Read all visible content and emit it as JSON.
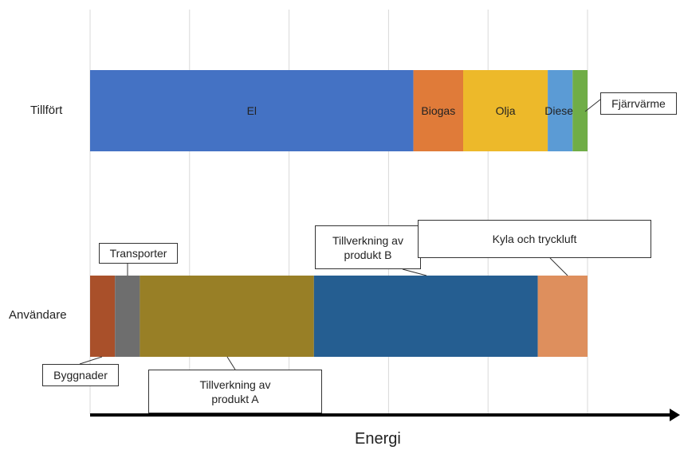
{
  "chart_data": {
    "type": "bar",
    "orientation": "horizontal",
    "stacked": true,
    "categories": [
      "Tillfört",
      "Användare"
    ],
    "xlabel": "Energi",
    "grid": true,
    "tillfort": {
      "category": "Tillfört",
      "segments": [
        {
          "name": "El",
          "value": 65,
          "color": "#4472C4",
          "label": "El"
        },
        {
          "name": "Biogas",
          "value": 10,
          "color": "#E07B39",
          "label": "Biogas"
        },
        {
          "name": "Olja",
          "value": 17,
          "color": "#EDB92A",
          "label": "Olja"
        },
        {
          "name": "Diesel",
          "value": 5,
          "color": "#5B9BD5",
          "label": "Diesel"
        },
        {
          "name": "Fjärrvärme",
          "value": 3,
          "color": "#70AD47",
          "label": "Fjärrvärme"
        }
      ]
    },
    "anvandare": {
      "category": "Användare",
      "segments": [
        {
          "name": "Byggnader",
          "value": 5,
          "color": "#A9502A",
          "label": "Byggnader"
        },
        {
          "name": "Transporter",
          "value": 5,
          "color": "#6E6E6E",
          "label": "Transporter"
        },
        {
          "name": "Tillverkning av produkt A",
          "value": 35,
          "color": "#987F26",
          "label_line1": "Tillverkning av",
          "label_line2": "produkt A"
        },
        {
          "name": "Tillverkning av produkt B",
          "value": 45,
          "color": "#255E91",
          "label_line1": "Tillverkning av",
          "label_line2": "produkt B"
        },
        {
          "name": "Kyla och tryckluft",
          "value": 10,
          "color": "#DE8F5D",
          "label": "Kyla och tryckluft"
        }
      ]
    }
  }
}
